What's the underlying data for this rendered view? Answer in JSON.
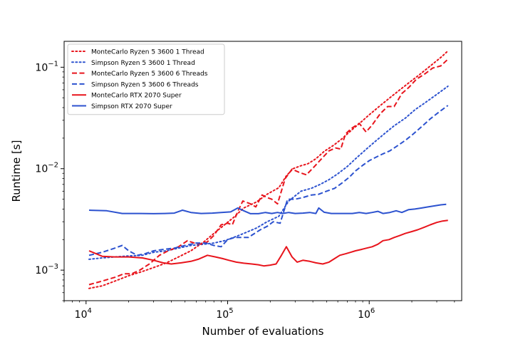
{
  "chart_data": {
    "type": "line",
    "xscale": "log",
    "yscale": "log",
    "title": "",
    "xlabel": "Number of evaluations",
    "ylabel": "Runtime [s]",
    "xlim": [
      7000,
      4500000
    ],
    "ylim": [
      0.0005,
      0.18
    ],
    "x_ticks": [
      {
        "value": 10000,
        "base": "10",
        "exp": "4"
      },
      {
        "value": 100000,
        "base": "10",
        "exp": "5"
      },
      {
        "value": 1000000,
        "base": "10",
        "exp": "6"
      }
    ],
    "y_ticks": [
      {
        "value": 0.001,
        "base": "10",
        "exp": "−3"
      },
      {
        "value": 0.01,
        "base": "10",
        "exp": "−2"
      },
      {
        "value": 0.1,
        "base": "10",
        "exp": "−1"
      }
    ],
    "legend_position": "top-left",
    "series": [
      {
        "name": "MonteCarlo Ryzen 5 3600 1 Thread",
        "color": "#e8141c",
        "style": "dotted",
        "points": [
          [
            10500,
            0.00066
          ],
          [
            13000,
            0.0007
          ],
          [
            16000,
            0.00078
          ],
          [
            20000,
            0.00088
          ],
          [
            25000,
            0.00097
          ],
          [
            30000,
            0.00106
          ],
          [
            37000,
            0.00118
          ],
          [
            45000,
            0.00135
          ],
          [
            55000,
            0.00155
          ],
          [
            68000,
            0.0019
          ],
          [
            80000,
            0.0023
          ],
          [
            95000,
            0.0028
          ],
          [
            110000,
            0.0033
          ],
          [
            130000,
            0.0041
          ],
          [
            160000,
            0.0047
          ],
          [
            190000,
            0.0056
          ],
          [
            230000,
            0.0065
          ],
          [
            260000,
            0.0085
          ],
          [
            290000,
            0.01
          ],
          [
            330000,
            0.0107
          ],
          [
            370000,
            0.0112
          ],
          [
            420000,
            0.0125
          ],
          [
            480000,
            0.0148
          ],
          [
            560000,
            0.017
          ],
          [
            650000,
            0.02
          ],
          [
            750000,
            0.024
          ],
          [
            880000,
            0.029
          ],
          [
            1000000,
            0.034
          ],
          [
            1200000,
            0.042
          ],
          [
            1400000,
            0.05
          ],
          [
            1650000,
            0.06
          ],
          [
            1950000,
            0.072
          ],
          [
            2300000,
            0.086
          ],
          [
            2750000,
            0.105
          ],
          [
            3250000,
            0.127
          ],
          [
            3600000,
            0.145
          ]
        ]
      },
      {
        "name": "Simpson Ryzen 5 3600 1 Thread",
        "color": "#2c52cf",
        "style": "dotted",
        "points": [
          [
            10500,
            0.00128
          ],
          [
            13000,
            0.00132
          ],
          [
            16000,
            0.00135
          ],
          [
            20000,
            0.00138
          ],
          [
            25000,
            0.0014
          ],
          [
            30000,
            0.0015
          ],
          [
            37000,
            0.00155
          ],
          [
            45000,
            0.00165
          ],
          [
            55000,
            0.00175
          ],
          [
            68000,
            0.0018
          ],
          [
            80000,
            0.00185
          ],
          [
            95000,
            0.00195
          ],
          [
            110000,
            0.0021
          ],
          [
            130000,
            0.0023
          ],
          [
            160000,
            0.0026
          ],
          [
            190000,
            0.003
          ],
          [
            230000,
            0.0034
          ],
          [
            270000,
            0.0048
          ],
          [
            330000,
            0.006
          ],
          [
            390000,
            0.0064
          ],
          [
            450000,
            0.007
          ],
          [
            520000,
            0.0078
          ],
          [
            600000,
            0.0089
          ],
          [
            700000,
            0.0105
          ],
          [
            800000,
            0.0125
          ],
          [
            950000,
            0.0155
          ],
          [
            1100000,
            0.0185
          ],
          [
            1300000,
            0.0225
          ],
          [
            1500000,
            0.0265
          ],
          [
            1800000,
            0.0315
          ],
          [
            2100000,
            0.038
          ],
          [
            2500000,
            0.045
          ],
          [
            3000000,
            0.054
          ],
          [
            3600000,
            0.065
          ]
        ]
      },
      {
        "name": "MonteCarlo Ryzen 5 3600 6 Threads",
        "color": "#e8141c",
        "style": "dashed",
        "points": [
          [
            10500,
            0.00072
          ],
          [
            13000,
            0.00078
          ],
          [
            16000,
            0.00085
          ],
          [
            18500,
            0.00092
          ],
          [
            21000,
            0.00092
          ],
          [
            24000,
            0.001
          ],
          [
            28000,
            0.00115
          ],
          [
            33000,
            0.0014
          ],
          [
            38000,
            0.00155
          ],
          [
            45000,
            0.0017
          ],
          [
            52000,
            0.00195
          ],
          [
            58000,
            0.00185
          ],
          [
            65000,
            0.0018
          ],
          [
            72000,
            0.0019
          ],
          [
            80000,
            0.0022
          ],
          [
            90000,
            0.0028
          ],
          [
            100000,
            0.0029
          ],
          [
            108000,
            0.0028
          ],
          [
            118000,
            0.0038
          ],
          [
            128000,
            0.0048
          ],
          [
            145000,
            0.0045
          ],
          [
            158000,
            0.0042
          ],
          [
            175000,
            0.0055
          ],
          [
            190000,
            0.0052
          ],
          [
            205000,
            0.005
          ],
          [
            225000,
            0.0045
          ],
          [
            255000,
            0.008
          ],
          [
            285000,
            0.0099
          ],
          [
            320000,
            0.0092
          ],
          [
            360000,
            0.0087
          ],
          [
            410000,
            0.0105
          ],
          [
            460000,
            0.0125
          ],
          [
            520000,
            0.015
          ],
          [
            580000,
            0.016
          ],
          [
            630000,
            0.0156
          ],
          [
            680000,
            0.022
          ],
          [
            750000,
            0.025
          ],
          [
            850000,
            0.028
          ],
          [
            950000,
            0.023
          ],
          [
            1050000,
            0.027
          ],
          [
            1200000,
            0.035
          ],
          [
            1350000,
            0.041
          ],
          [
            1500000,
            0.041
          ],
          [
            1700000,
            0.055
          ],
          [
            1900000,
            0.063
          ],
          [
            2150000,
            0.076
          ],
          [
            2500000,
            0.087
          ],
          [
            2800000,
            0.098
          ],
          [
            3200000,
            0.103
          ],
          [
            3600000,
            0.12
          ]
        ]
      },
      {
        "name": "Simpson Ryzen 5 3600 6 Threads",
        "color": "#2c52cf",
        "style": "dashed",
        "points": [
          [
            10500,
            0.0014
          ],
          [
            13000,
            0.0015
          ],
          [
            16000,
            0.00165
          ],
          [
            18000,
            0.00175
          ],
          [
            20000,
            0.00155
          ],
          [
            23000,
            0.0014
          ],
          [
            26000,
            0.00145
          ],
          [
            30000,
            0.00155
          ],
          [
            35000,
            0.0016
          ],
          [
            42000,
            0.00165
          ],
          [
            50000,
            0.00175
          ],
          [
            60000,
            0.00185
          ],
          [
            70000,
            0.00185
          ],
          [
            80000,
            0.00175
          ],
          [
            90000,
            0.0017
          ],
          [
            100000,
            0.002
          ],
          [
            112000,
            0.0021
          ],
          [
            125000,
            0.0021
          ],
          [
            140000,
            0.0021
          ],
          [
            155000,
            0.0023
          ],
          [
            170000,
            0.0025
          ],
          [
            190000,
            0.0027
          ],
          [
            210000,
            0.003
          ],
          [
            235000,
            0.0029
          ],
          [
            265000,
            0.005
          ],
          [
            300000,
            0.005
          ],
          [
            340000,
            0.0052
          ],
          [
            390000,
            0.0055
          ],
          [
            440000,
            0.0056
          ],
          [
            500000,
            0.006
          ],
          [
            570000,
            0.0064
          ],
          [
            640000,
            0.0072
          ],
          [
            720000,
            0.0082
          ],
          [
            800000,
            0.0095
          ],
          [
            900000,
            0.0108
          ],
          [
            1000000,
            0.012
          ],
          [
            1120000,
            0.013
          ],
          [
            1250000,
            0.014
          ],
          [
            1400000,
            0.015
          ],
          [
            1600000,
            0.017
          ],
          [
            1800000,
            0.019
          ],
          [
            2050000,
            0.022
          ],
          [
            2350000,
            0.026
          ],
          [
            2700000,
            0.031
          ],
          [
            3100000,
            0.036
          ],
          [
            3600000,
            0.042
          ]
        ]
      },
      {
        "name": "MonteCarlo RTX 2070 Super",
        "color": "#e8141c",
        "style": "solid",
        "points": [
          [
            10500,
            0.00155
          ],
          [
            13000,
            0.00137
          ],
          [
            16000,
            0.00135
          ],
          [
            20000,
            0.00135
          ],
          [
            25000,
            0.00132
          ],
          [
            30000,
            0.00125
          ],
          [
            35000,
            0.00118
          ],
          [
            40000,
            0.00115
          ],
          [
            47000,
            0.00118
          ],
          [
            55000,
            0.00122
          ],
          [
            62000,
            0.00128
          ],
          [
            72000,
            0.0014
          ],
          [
            82000,
            0.00135
          ],
          [
            92000,
            0.0013
          ],
          [
            102000,
            0.00125
          ],
          [
            115000,
            0.0012
          ],
          [
            130000,
            0.00117
          ],
          [
            148000,
            0.00115
          ],
          [
            165000,
            0.00113
          ],
          [
            180000,
            0.0011
          ],
          [
            200000,
            0.00112
          ],
          [
            220000,
            0.00115
          ],
          [
            240000,
            0.0014
          ],
          [
            260000,
            0.0017
          ],
          [
            285000,
            0.00135
          ],
          [
            310000,
            0.0012
          ],
          [
            340000,
            0.00125
          ],
          [
            380000,
            0.00122
          ],
          [
            420000,
            0.00118
          ],
          [
            470000,
            0.00115
          ],
          [
            520000,
            0.0012
          ],
          [
            570000,
            0.0013
          ],
          [
            620000,
            0.0014
          ],
          [
            680000,
            0.00145
          ],
          [
            740000,
            0.0015
          ],
          [
            800000,
            0.00155
          ],
          [
            880000,
            0.0016
          ],
          [
            960000,
            0.00165
          ],
          [
            1050000,
            0.0017
          ],
          [
            1150000,
            0.0018
          ],
          [
            1250000,
            0.00195
          ],
          [
            1380000,
            0.002
          ],
          [
            1500000,
            0.0021
          ],
          [
            1650000,
            0.0022
          ],
          [
            1800000,
            0.0023
          ],
          [
            2000000,
            0.0024
          ],
          [
            2200000,
            0.0025
          ],
          [
            2450000,
            0.00265
          ],
          [
            2700000,
            0.0028
          ],
          [
            3000000,
            0.00295
          ],
          [
            3300000,
            0.00305
          ],
          [
            3600000,
            0.0031
          ]
        ]
      },
      {
        "name": "Simpson RTX 2070 Super",
        "color": "#2c52cf",
        "style": "solid",
        "points": [
          [
            10500,
            0.0039
          ],
          [
            14000,
            0.00385
          ],
          [
            18000,
            0.00362
          ],
          [
            24000,
            0.00362
          ],
          [
            30000,
            0.0036
          ],
          [
            36000,
            0.00362
          ],
          [
            42000,
            0.00365
          ],
          [
            48000,
            0.0039
          ],
          [
            55000,
            0.0037
          ],
          [
            65000,
            0.00362
          ],
          [
            78000,
            0.00365
          ],
          [
            90000,
            0.0037
          ],
          [
            105000,
            0.00375
          ],
          [
            118000,
            0.0041
          ],
          [
            130000,
            0.00385
          ],
          [
            145000,
            0.0036
          ],
          [
            165000,
            0.0036
          ],
          [
            185000,
            0.0037
          ],
          [
            205000,
            0.00362
          ],
          [
            225000,
            0.0037
          ],
          [
            245000,
            0.00362
          ],
          [
            270000,
            0.0037
          ],
          [
            300000,
            0.00362
          ],
          [
            340000,
            0.00365
          ],
          [
            380000,
            0.0037
          ],
          [
            420000,
            0.00362
          ],
          [
            440000,
            0.0041
          ],
          [
            480000,
            0.00372
          ],
          [
            540000,
            0.00362
          ],
          [
            600000,
            0.00362
          ],
          [
            680000,
            0.00362
          ],
          [
            760000,
            0.00362
          ],
          [
            850000,
            0.0037
          ],
          [
            950000,
            0.00362
          ],
          [
            1050000,
            0.0037
          ],
          [
            1150000,
            0.0038
          ],
          [
            1250000,
            0.00362
          ],
          [
            1400000,
            0.0037
          ],
          [
            1550000,
            0.00385
          ],
          [
            1700000,
            0.0037
          ],
          [
            1900000,
            0.00395
          ],
          [
            2100000,
            0.004
          ],
          [
            2350000,
            0.0041
          ],
          [
            2600000,
            0.0042
          ],
          [
            2900000,
            0.0043
          ],
          [
            3200000,
            0.0044
          ],
          [
            3500000,
            0.00445
          ]
        ]
      }
    ]
  }
}
